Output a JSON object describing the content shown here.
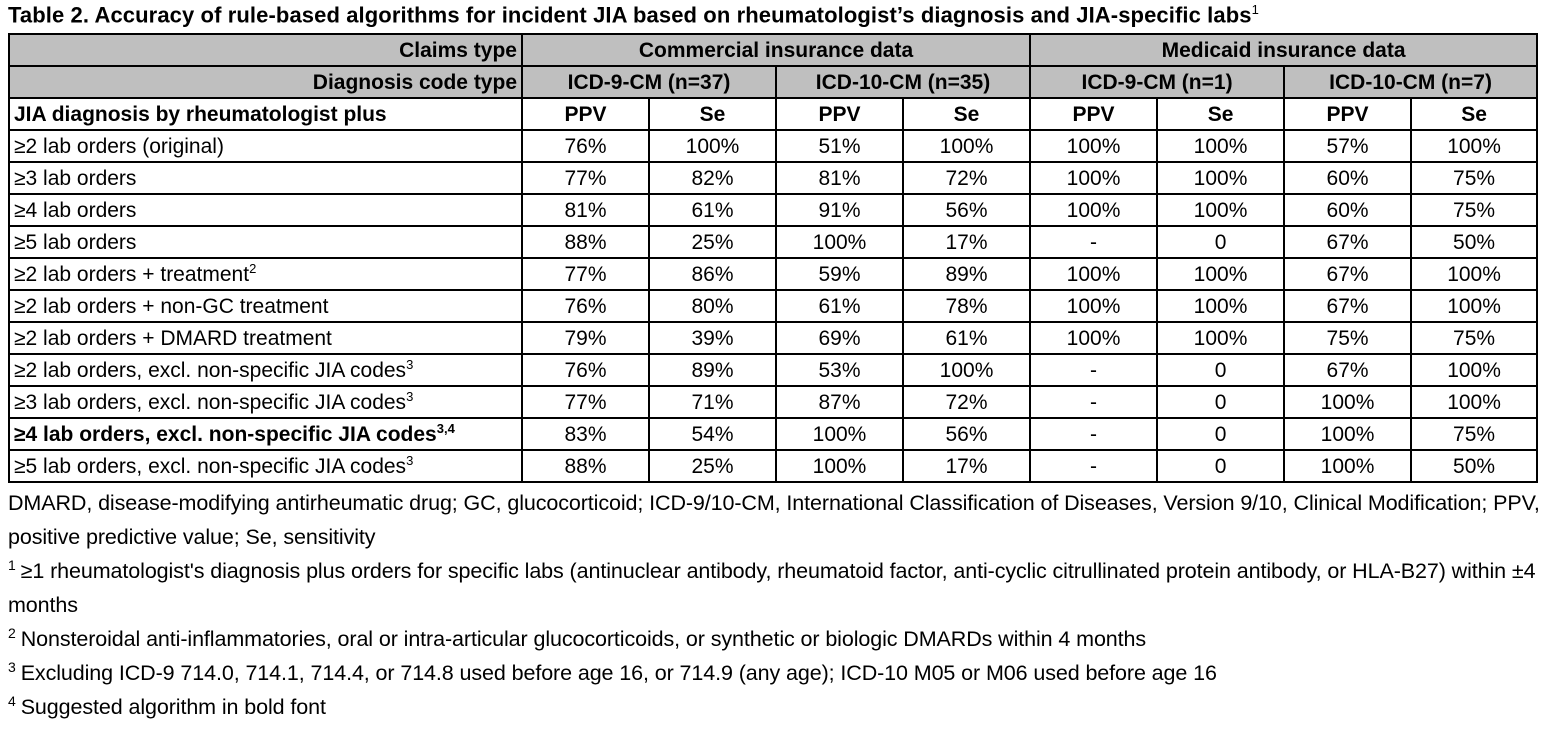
{
  "title": {
    "text": "Table 2. Accuracy of rule-based algorithms for incident JIA based on rheumatologist’s diagnosis and JIA-specific labs",
    "superscript": "1"
  },
  "table": {
    "header": {
      "claims_type_label": "Claims type",
      "diagnosis_code_label": "Diagnosis code type",
      "row_header_label": "JIA diagnosis by rheumatologist plus",
      "groups": [
        {
          "label": "Commercial insurance data",
          "subgroups": [
            "ICD-9-CM (n=37)",
            "ICD-10-CM (n=35)"
          ]
        },
        {
          "label": "Medicaid insurance data",
          "subgroups": [
            "ICD-9-CM (n=1)",
            "ICD-10-CM (n=7)"
          ]
        }
      ],
      "metric_labels": [
        "PPV",
        "Se",
        "PPV",
        "Se",
        "PPV",
        "Se",
        "PPV",
        "Se"
      ]
    },
    "rows": [
      {
        "label": "≥2 lab orders (original)",
        "sup": "",
        "bold": false,
        "values": [
          "76%",
          "100%",
          "51%",
          "100%",
          "100%",
          "100%",
          "57%",
          "100%"
        ]
      },
      {
        "label": "≥3 lab orders",
        "sup": "",
        "bold": false,
        "values": [
          "77%",
          "82%",
          "81%",
          "72%",
          "100%",
          "100%",
          "60%",
          "75%"
        ]
      },
      {
        "label": "≥4 lab orders",
        "sup": "",
        "bold": false,
        "values": [
          "81%",
          "61%",
          "91%",
          "56%",
          "100%",
          "100%",
          "60%",
          "75%"
        ]
      },
      {
        "label": "≥5 lab orders",
        "sup": "",
        "bold": false,
        "values": [
          "88%",
          "25%",
          "100%",
          "17%",
          "-",
          "0",
          "67%",
          "50%"
        ]
      },
      {
        "label": "≥2 lab orders + treatment",
        "sup": "2",
        "bold": false,
        "values": [
          "77%",
          "86%",
          "59%",
          "89%",
          "100%",
          "100%",
          "67%",
          "100%"
        ]
      },
      {
        "label": "≥2 lab orders + non-GC treatment",
        "sup": "",
        "bold": false,
        "values": [
          "76%",
          "80%",
          "61%",
          "78%",
          "100%",
          "100%",
          "67%",
          "100%"
        ]
      },
      {
        "label": "≥2 lab orders + DMARD treatment",
        "sup": "",
        "bold": false,
        "values": [
          "79%",
          "39%",
          "69%",
          "61%",
          "100%",
          "100%",
          "75%",
          "75%"
        ]
      },
      {
        "label": "≥2 lab orders, excl. non-specific JIA codes",
        "sup": "3",
        "bold": false,
        "values": [
          "76%",
          "89%",
          "53%",
          "100%",
          "-",
          "0",
          "67%",
          "100%"
        ]
      },
      {
        "label": "≥3 lab orders, excl. non-specific JIA codes",
        "sup": "3",
        "bold": false,
        "values": [
          "77%",
          "71%",
          "87%",
          "72%",
          "-",
          "0",
          "100%",
          "100%"
        ]
      },
      {
        "label": "≥4 lab orders, excl. non-specific JIA codes",
        "sup": "3,4",
        "bold": true,
        "values": [
          "83%",
          "54%",
          "100%",
          "56%",
          "-",
          "0",
          "100%",
          "75%"
        ]
      },
      {
        "label": "≥5 lab orders, excl. non-specific JIA codes",
        "sup": "3",
        "bold": false,
        "values": [
          "88%",
          "25%",
          "100%",
          "17%",
          "-",
          "0",
          "100%",
          "50%"
        ]
      }
    ]
  },
  "footnotes": {
    "abbreviations": "DMARD, disease-modifying antirheumatic drug; GC, glucocorticoid; ICD-9/10-CM, International Classification of Diseases, Version 9/10, Clinical Modification; PPV, positive predictive value; Se, sensitivity",
    "items": [
      {
        "sup": "1",
        "text": "≥1 rheumatologist's diagnosis plus orders for specific labs (antinuclear antibody, rheumatoid factor, anti-cyclic citrullinated protein antibody, or HLA-B27) within ±4 months"
      },
      {
        "sup": "2",
        "text": "Nonsteroidal anti-inflammatories, oral or intra-articular glucocorticoids, or synthetic or biologic DMARDs within 4 months"
      },
      {
        "sup": "3",
        "text": "Excluding ICD-9 714.0, 714.1, 714.4, or 714.8 used before age 16, or 714.9 (any age); ICD-10 M05 or M06 used before age 16"
      },
      {
        "sup": "4",
        "text": "Suggested algorithm in bold font"
      }
    ]
  },
  "colors": {
    "header_fill": "#BFBFBF",
    "border": "#000000",
    "text": "#000000",
    "background": "#FFFFFF"
  }
}
